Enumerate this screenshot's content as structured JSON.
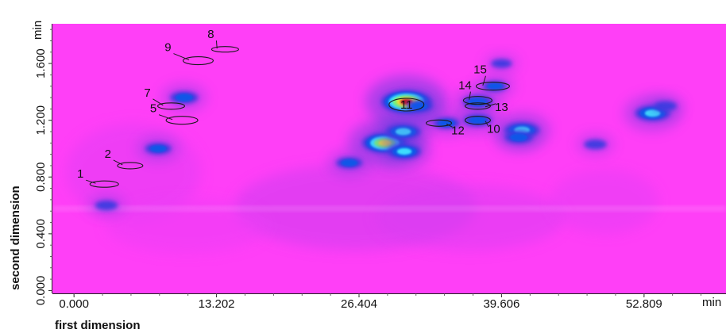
{
  "chart_data": {
    "type": "heatmap",
    "title": "",
    "xlabel": "first dimension",
    "ylabel": "second dimension",
    "x_unit": "min",
    "y_unit": "min",
    "xlim": [
      -2.0,
      60.4
    ],
    "ylim": [
      -0.02,
      1.88
    ],
    "x_ticks": [
      "0.000",
      "13.202",
      "26.404",
      "39.606",
      "52.809"
    ],
    "x_tick_values": [
      0.0,
      13.202,
      26.404,
      39.606,
      52.809
    ],
    "y_ticks": [
      "0.000",
      "0.400",
      "0.800",
      "1.200",
      "1.600"
    ],
    "y_tick_values": [
      0.0,
      0.4,
      0.8,
      1.2,
      1.6
    ],
    "grid": false,
    "background_color": "#ff3ff7",
    "colormap": [
      "#ff3ff7",
      "#3a3ae0",
      "#0a58e8",
      "#3fe6ff",
      "#7dff6a",
      "#ffee22",
      "#d80000"
    ],
    "peaks": [
      {
        "x": 28.8,
        "y": 1.04,
        "intensity": 0.85
      },
      {
        "x": 30.5,
        "y": 1.12,
        "intensity": 0.55
      },
      {
        "x": 30.6,
        "y": 0.98,
        "intensity": 0.5
      },
      {
        "x": 30.8,
        "y": 1.33,
        "intensity": 1.0
      },
      {
        "x": 37.4,
        "y": 1.33,
        "intensity": 0.4
      },
      {
        "x": 37.4,
        "y": 1.2,
        "intensity": 0.35
      },
      {
        "x": 41.5,
        "y": 1.13,
        "intensity": 0.55
      },
      {
        "x": 41.2,
        "y": 1.08,
        "intensity": 0.35
      },
      {
        "x": 53.6,
        "y": 1.25,
        "intensity": 0.55
      },
      {
        "x": 10.2,
        "y": 1.36,
        "intensity": 0.35
      },
      {
        "x": 7.8,
        "y": 1.0,
        "intensity": 0.3
      },
      {
        "x": 25.5,
        "y": 0.9,
        "intensity": 0.3
      },
      {
        "x": 34.5,
        "y": 1.18,
        "intensity": 0.3
      },
      {
        "x": 32.0,
        "y": 1.3,
        "intensity": 0.3
      },
      {
        "x": 3.0,
        "y": 0.6,
        "intensity": 0.2
      },
      {
        "x": 48.3,
        "y": 1.03,
        "intensity": 0.2
      },
      {
        "x": 39.6,
        "y": 1.6,
        "intensity": 0.15
      },
      {
        "x": 39.0,
        "y": 1.44,
        "intensity": 0.25
      },
      {
        "x": 54.8,
        "y": 1.3,
        "intensity": 0.2
      }
    ],
    "annotations": [
      {
        "label": "1",
        "x": 2.8,
        "y": 0.75
      },
      {
        "label": "2",
        "x": 5.2,
        "y": 0.88
      },
      {
        "label": "5",
        "x": 10.0,
        "y": 1.2
      },
      {
        "label": "7",
        "x": 9.0,
        "y": 1.3
      },
      {
        "label": "9",
        "x": 11.5,
        "y": 1.62
      },
      {
        "label": "8",
        "x": 14.0,
        "y": 1.7
      },
      {
        "label": "11",
        "x": 30.8,
        "y": 1.31
      },
      {
        "label": "12",
        "x": 33.8,
        "y": 1.18
      },
      {
        "label": "10",
        "x": 37.4,
        "y": 1.2
      },
      {
        "label": "13",
        "x": 37.4,
        "y": 1.3
      },
      {
        "label": "14",
        "x": 37.4,
        "y": 1.34
      },
      {
        "label": "15",
        "x": 38.8,
        "y": 1.44
      }
    ]
  }
}
